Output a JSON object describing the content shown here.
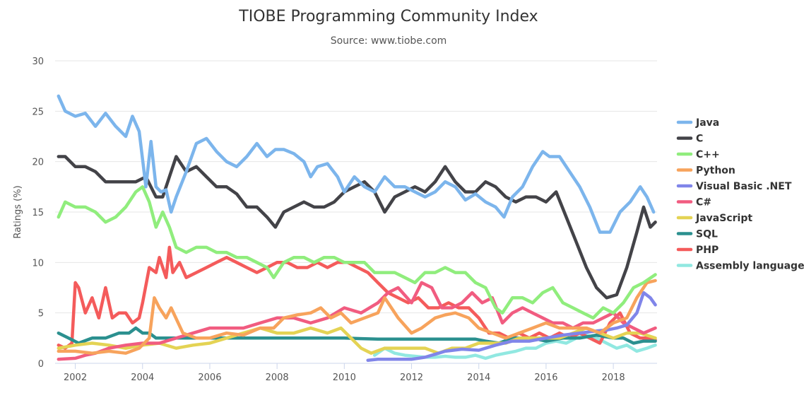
{
  "chart_data": {
    "type": "line",
    "title": "TIOBE Programming Community Index",
    "subtitle": "Source: www.tiobe.com",
    "ylabel": "Ratings (%)",
    "xlabel": "",
    "xlim": [
      2001.4,
      2019.3
    ],
    "ylim": [
      0,
      30
    ],
    "yticks": [
      "0",
      "5",
      "10",
      "15",
      "20",
      "25",
      "30"
    ],
    "xticks": [
      "2002",
      "2004",
      "2006",
      "2008",
      "2010",
      "2012",
      "2014",
      "2016",
      "2018"
    ],
    "grid": "horizontal",
    "legend_position": "right",
    "series": [
      {
        "name": "Java",
        "color": "#7cb5ec",
        "x": [
          2001.5,
          2001.7,
          2002.0,
          2002.3,
          2002.6,
          2002.9,
          2003.2,
          2003.5,
          2003.7,
          2003.9,
          2004.1,
          2004.25,
          2004.4,
          2004.55,
          2004.7,
          2004.85,
          2005.0,
          2005.3,
          2005.6,
          2005.9,
          2006.2,
          2006.5,
          2006.8,
          2007.1,
          2007.4,
          2007.7,
          2007.95,
          2008.2,
          2008.5,
          2008.8,
          2009.0,
          2009.2,
          2009.5,
          2009.8,
          2010.0,
          2010.3,
          2010.6,
          2010.9,
          2011.2,
          2011.5,
          2011.8,
          2012.1,
          2012.4,
          2012.7,
          2013.0,
          2013.3,
          2013.6,
          2013.9,
          2014.2,
          2014.5,
          2014.75,
          2015.0,
          2015.3,
          2015.6,
          2015.9,
          2016.1,
          2016.4,
          2016.7,
          2017.0,
          2017.3,
          2017.6,
          2017.9,
          2018.2,
          2018.5,
          2018.8,
          2019.0,
          2019.2
        ],
        "y": [
          26.5,
          25.0,
          24.5,
          24.8,
          23.5,
          24.8,
          23.5,
          22.5,
          24.5,
          23.0,
          17.5,
          22.0,
          17.5,
          17.0,
          17.2,
          15.0,
          16.5,
          19.0,
          21.8,
          22.3,
          21.0,
          20.0,
          19.5,
          20.5,
          21.8,
          20.5,
          21.2,
          21.2,
          20.8,
          20.0,
          18.5,
          19.5,
          19.8,
          18.5,
          17.0,
          18.5,
          17.5,
          17.0,
          18.5,
          17.5,
          17.5,
          17.0,
          16.5,
          17.0,
          18.0,
          17.5,
          16.2,
          16.8,
          16.0,
          15.5,
          14.5,
          16.5,
          17.5,
          19.5,
          21.0,
          20.5,
          20.5,
          19.0,
          17.5,
          15.5,
          13.0,
          13.0,
          15.0,
          16.0,
          17.5,
          16.5,
          15.0
        ]
      },
      {
        "name": "C",
        "color": "#434348",
        "x": [
          2001.5,
          2001.7,
          2002.0,
          2002.3,
          2002.6,
          2002.9,
          2003.2,
          2003.5,
          2003.8,
          2004.1,
          2004.4,
          2004.6,
          2004.8,
          2005.0,
          2005.3,
          2005.6,
          2005.9,
          2006.2,
          2006.5,
          2006.8,
          2007.1,
          2007.4,
          2007.7,
          2007.95,
          2008.2,
          2008.5,
          2008.8,
          2009.1,
          2009.4,
          2009.7,
          2010.0,
          2010.3,
          2010.6,
          2010.9,
          2011.2,
          2011.5,
          2011.8,
          2012.1,
          2012.4,
          2012.7,
          2013.0,
          2013.3,
          2013.6,
          2013.9,
          2014.2,
          2014.5,
          2014.8,
          2015.1,
          2015.4,
          2015.7,
          2016.0,
          2016.3,
          2016.6,
          2016.9,
          2017.2,
          2017.5,
          2017.8,
          2018.1,
          2018.4,
          2018.7,
          2018.9,
          2019.1,
          2019.25
        ],
        "y": [
          20.5,
          20.5,
          19.5,
          19.5,
          19.0,
          18.0,
          18.0,
          18.0,
          18.0,
          18.5,
          16.5,
          16.5,
          18.5,
          20.5,
          19.0,
          19.5,
          18.5,
          17.5,
          17.5,
          16.8,
          15.5,
          15.5,
          14.5,
          13.5,
          15.0,
          15.5,
          16.0,
          15.5,
          15.5,
          16.0,
          17.0,
          17.5,
          18.0,
          17.0,
          15.0,
          16.5,
          17.0,
          17.5,
          17.0,
          18.0,
          19.5,
          18.0,
          17.0,
          17.0,
          18.0,
          17.5,
          16.5,
          16.0,
          16.5,
          16.5,
          16.0,
          17.0,
          14.5,
          12.0,
          9.5,
          7.5,
          6.5,
          6.8,
          9.5,
          13.0,
          15.5,
          13.5,
          14.0
        ]
      },
      {
        "name": "C++",
        "color": "#90ed7d",
        "x": [
          2001.5,
          2001.7,
          2002.0,
          2002.3,
          2002.6,
          2002.9,
          2003.2,
          2003.5,
          2003.8,
          2004.0,
          2004.2,
          2004.4,
          2004.6,
          2004.8,
          2005.0,
          2005.3,
          2005.6,
          2005.9,
          2006.2,
          2006.5,
          2006.8,
          2007.1,
          2007.4,
          2007.7,
          2007.9,
          2008.2,
          2008.5,
          2008.8,
          2009.1,
          2009.4,
          2009.7,
          2010.0,
          2010.3,
          2010.6,
          2010.9,
          2011.2,
          2011.5,
          2011.8,
          2012.1,
          2012.4,
          2012.7,
          2013.0,
          2013.3,
          2013.6,
          2013.9,
          2014.2,
          2014.5,
          2014.7,
          2015.0,
          2015.3,
          2015.6,
          2015.9,
          2016.2,
          2016.5,
          2016.8,
          2017.1,
          2017.4,
          2017.7,
          2018.0,
          2018.3,
          2018.6,
          2018.9,
          2019.25
        ],
        "y": [
          14.5,
          16.0,
          15.5,
          15.5,
          15.0,
          14.0,
          14.5,
          15.5,
          17.0,
          17.5,
          16.0,
          13.5,
          15.0,
          13.5,
          11.5,
          11.0,
          11.5,
          11.5,
          11.0,
          11.0,
          10.5,
          10.5,
          10.0,
          9.5,
          8.5,
          10.0,
          10.5,
          10.5,
          10.0,
          10.5,
          10.5,
          10.0,
          10.0,
          10.0,
          9.0,
          9.0,
          9.0,
          8.5,
          8.0,
          9.0,
          9.0,
          9.5,
          9.0,
          9.0,
          8.0,
          7.5,
          5.5,
          5.0,
          6.5,
          6.5,
          6.0,
          7.0,
          7.5,
          6.0,
          5.5,
          5.0,
          4.5,
          5.5,
          5.0,
          6.0,
          7.5,
          8.0,
          8.8
        ]
      },
      {
        "name": "Python",
        "color": "#f7a35c",
        "x": [
          2001.5,
          2002.0,
          2002.5,
          2003.0,
          2003.5,
          2003.9,
          2004.2,
          2004.35,
          2004.5,
          2004.7,
          2004.85,
          2005.2,
          2005.6,
          2006.0,
          2006.5,
          2007.0,
          2007.5,
          2007.9,
          2008.2,
          2008.6,
          2009.0,
          2009.3,
          2009.6,
          2009.9,
          2010.2,
          2010.6,
          2011.0,
          2011.2,
          2011.6,
          2012.0,
          2012.3,
          2012.7,
          2013.0,
          2013.3,
          2013.7,
          2014.0,
          2014.4,
          2014.8,
          2015.2,
          2015.6,
          2016.0,
          2016.4,
          2016.8,
          2017.2,
          2017.6,
          2018.0,
          2018.4,
          2018.7,
          2019.0,
          2019.25
        ],
        "y": [
          1.2,
          1.2,
          1.0,
          1.2,
          1.0,
          1.5,
          2.5,
          6.5,
          5.5,
          4.5,
          5.5,
          3.0,
          2.5,
          2.5,
          3.0,
          2.8,
          3.5,
          3.5,
          4.5,
          4.8,
          5.0,
          5.5,
          4.5,
          5.0,
          4.0,
          4.5,
          5.0,
          6.5,
          4.5,
          3.0,
          3.5,
          4.5,
          4.8,
          5.0,
          4.5,
          3.5,
          3.0,
          2.5,
          3.0,
          3.5,
          4.0,
          3.5,
          3.5,
          3.5,
          3.0,
          4.0,
          4.5,
          6.5,
          8.0,
          8.2
        ]
      },
      {
        "name": "Visual Basic .NET",
        "color": "#8085e9",
        "x": [
          2010.7,
          2011.0,
          2011.5,
          2012.0,
          2012.4,
          2012.7,
          2013.0,
          2013.5,
          2014.0,
          2014.5,
          2015.0,
          2015.5,
          2016.0,
          2016.5,
          2017.0,
          2017.5,
          2017.8,
          2018.1,
          2018.4,
          2018.7,
          2018.9,
          2019.1,
          2019.25
        ],
        "y": [
          0.3,
          0.4,
          0.4,
          0.4,
          0.6,
          0.9,
          1.2,
          1.4,
          1.3,
          1.8,
          2.2,
          2.2,
          2.5,
          2.8,
          3.0,
          3.2,
          3.3,
          3.5,
          3.8,
          5.0,
          7.0,
          6.5,
          5.8
        ]
      },
      {
        "name": "C#",
        "color": "#f15c80",
        "x": [
          2001.5,
          2002.0,
          2002.3,
          2002.6,
          2003.0,
          2003.5,
          2004.0,
          2004.5,
          2005.0,
          2005.5,
          2006.0,
          2006.5,
          2007.0,
          2007.5,
          2008.0,
          2008.5,
          2009.0,
          2009.5,
          2010.0,
          2010.5,
          2011.0,
          2011.3,
          2011.6,
          2012.0,
          2012.3,
          2012.6,
          2012.9,
          2013.2,
          2013.5,
          2013.8,
          2014.1,
          2014.4,
          2014.7,
          2015.0,
          2015.3,
          2015.6,
          2015.9,
          2016.2,
          2016.5,
          2016.8,
          2017.1,
          2017.4,
          2017.7,
          2018.0,
          2018.3,
          2018.6,
          2018.9,
          2019.25
        ],
        "y": [
          0.4,
          0.5,
          0.8,
          1.0,
          1.5,
          1.8,
          2.0,
          2.0,
          2.5,
          3.0,
          3.5,
          3.5,
          3.5,
          4.0,
          4.5,
          4.5,
          4.0,
          4.5,
          5.5,
          5.0,
          6.0,
          7.0,
          7.5,
          6.0,
          8.0,
          7.5,
          5.5,
          5.5,
          6.0,
          7.0,
          6.0,
          6.5,
          4.0,
          5.0,
          5.5,
          5.0,
          4.5,
          4.0,
          4.0,
          3.5,
          4.0,
          4.0,
          4.5,
          5.0,
          4.0,
          3.5,
          3.0,
          3.5
        ]
      },
      {
        "name": "JavaScript",
        "color": "#e4d354",
        "x": [
          2001.5,
          2002.0,
          2002.5,
          2003.0,
          2003.5,
          2004.0,
          2004.5,
          2005.0,
          2005.5,
          2006.0,
          2006.5,
          2007.0,
          2007.5,
          2008.0,
          2008.5,
          2009.0,
          2009.5,
          2009.9,
          2010.2,
          2010.5,
          2010.8,
          2011.2,
          2011.6,
          2012.0,
          2012.4,
          2012.8,
          2013.2,
          2013.6,
          2014.0,
          2014.4,
          2014.8,
          2015.2,
          2015.6,
          2016.0,
          2016.4,
          2016.8,
          2017.2,
          2017.6,
          2018.0,
          2018.4,
          2018.8,
          2019.25
        ],
        "y": [
          1.5,
          1.8,
          2.0,
          1.8,
          1.5,
          1.8,
          2.0,
          1.5,
          1.8,
          2.0,
          2.5,
          3.0,
          3.5,
          3.0,
          3.0,
          3.5,
          3.0,
          3.5,
          2.5,
          1.5,
          1.0,
          1.5,
          1.5,
          1.5,
          1.5,
          1.0,
          1.5,
          1.5,
          2.0,
          2.0,
          2.0,
          2.5,
          2.5,
          2.5,
          2.5,
          3.0,
          3.5,
          3.0,
          2.5,
          3.0,
          3.0,
          2.5
        ]
      },
      {
        "name": "SQL",
        "color": "#2b908f",
        "x": [
          2001.5,
          2001.8,
          2002.1,
          2002.5,
          2002.9,
          2003.3,
          2003.6,
          2003.8,
          2004.0,
          2004.2,
          2004.4,
          2005.0,
          2006.0,
          2007.0,
          2008.0,
          2009.0,
          2010.0,
          2011.0,
          2012.0,
          2013.0,
          2013.9,
          2014.2,
          2014.6,
          2015.0,
          2015.6,
          2016.0,
          2016.5,
          2017.0,
          2017.5,
          2018.0,
          2018.3,
          2018.6,
          2018.9,
          2019.25
        ],
        "y": [
          3.0,
          2.5,
          2.0,
          2.5,
          2.5,
          3.0,
          3.0,
          3.5,
          3.0,
          3.0,
          2.5,
          2.5,
          2.5,
          2.5,
          2.5,
          2.5,
          2.5,
          2.4,
          2.4,
          2.4,
          2.4,
          2.2,
          2.0,
          2.5,
          2.5,
          2.2,
          2.5,
          2.5,
          2.8,
          2.5,
          2.5,
          2.0,
          2.2,
          2.2
        ]
      },
      {
        "name": "PHP",
        "color": "#f45b5b",
        "x": [
          2001.5,
          2001.7,
          2001.9,
          2002.0,
          2002.1,
          2002.3,
          2002.5,
          2002.7,
          2002.9,
          2003.1,
          2003.3,
          2003.5,
          2003.7,
          2003.9,
          2004.0,
          2004.2,
          2004.4,
          2004.5,
          2004.7,
          2004.8,
          2004.9,
          2005.1,
          2005.3,
          2005.6,
          2005.9,
          2006.2,
          2006.5,
          2006.8,
          2007.1,
          2007.4,
          2007.7,
          2008.0,
          2008.3,
          2008.6,
          2008.9,
          2009.2,
          2009.5,
          2009.8,
          2010.1,
          2010.4,
          2010.7,
          2011.0,
          2011.3,
          2011.6,
          2011.9,
          2012.2,
          2012.5,
          2012.8,
          2013.1,
          2013.4,
          2013.7,
          2014.0,
          2014.3,
          2014.6,
          2014.9,
          2015.2,
          2015.5,
          2015.8,
          2016.1,
          2016.4,
          2016.7,
          2017.0,
          2017.3,
          2017.6,
          2017.9,
          2018.2,
          2018.5,
          2018.8,
          2019.0,
          2019.25
        ],
        "y": [
          1.8,
          1.5,
          2.0,
          8.0,
          7.5,
          5.0,
          6.5,
          4.5,
          7.5,
          4.5,
          5.0,
          5.0,
          4.0,
          4.5,
          6.0,
          9.5,
          9.0,
          10.5,
          8.5,
          11.5,
          9.0,
          10.0,
          8.5,
          9.0,
          9.5,
          10.0,
          10.5,
          10.0,
          9.5,
          9.0,
          9.5,
          10.0,
          10.0,
          9.5,
          9.5,
          10.0,
          9.5,
          10.0,
          10.0,
          9.5,
          9.0,
          8.0,
          7.0,
          6.5,
          6.0,
          6.5,
          5.5,
          5.5,
          6.0,
          5.5,
          5.5,
          4.5,
          3.0,
          3.0,
          2.5,
          3.0,
          2.5,
          3.0,
          2.5,
          3.0,
          2.5,
          3.0,
          2.5,
          2.0,
          4.0,
          5.0,
          3.0,
          2.5,
          2.5,
          2.3
        ]
      },
      {
        "name": "Assembly language",
        "color": "#91e8e1",
        "x": [
          2010.9,
          2011.2,
          2011.5,
          2011.8,
          2012.1,
          2012.4,
          2012.7,
          2013.0,
          2013.3,
          2013.6,
          2013.9,
          2014.2,
          2014.5,
          2014.8,
          2015.1,
          2015.4,
          2015.7,
          2016.0,
          2016.3,
          2016.6,
          2016.9,
          2017.2,
          2017.5,
          2017.8,
          2018.1,
          2018.4,
          2018.7,
          2019.0,
          2019.25
        ],
        "y": [
          0.8,
          1.5,
          1.0,
          0.8,
          0.7,
          0.6,
          0.6,
          0.7,
          0.6,
          0.6,
          0.8,
          0.5,
          0.8,
          1.0,
          1.2,
          1.5,
          1.5,
          2.0,
          2.2,
          2.0,
          2.5,
          2.8,
          2.5,
          2.0,
          1.5,
          1.8,
          1.2,
          1.5,
          1.8
        ]
      }
    ]
  }
}
